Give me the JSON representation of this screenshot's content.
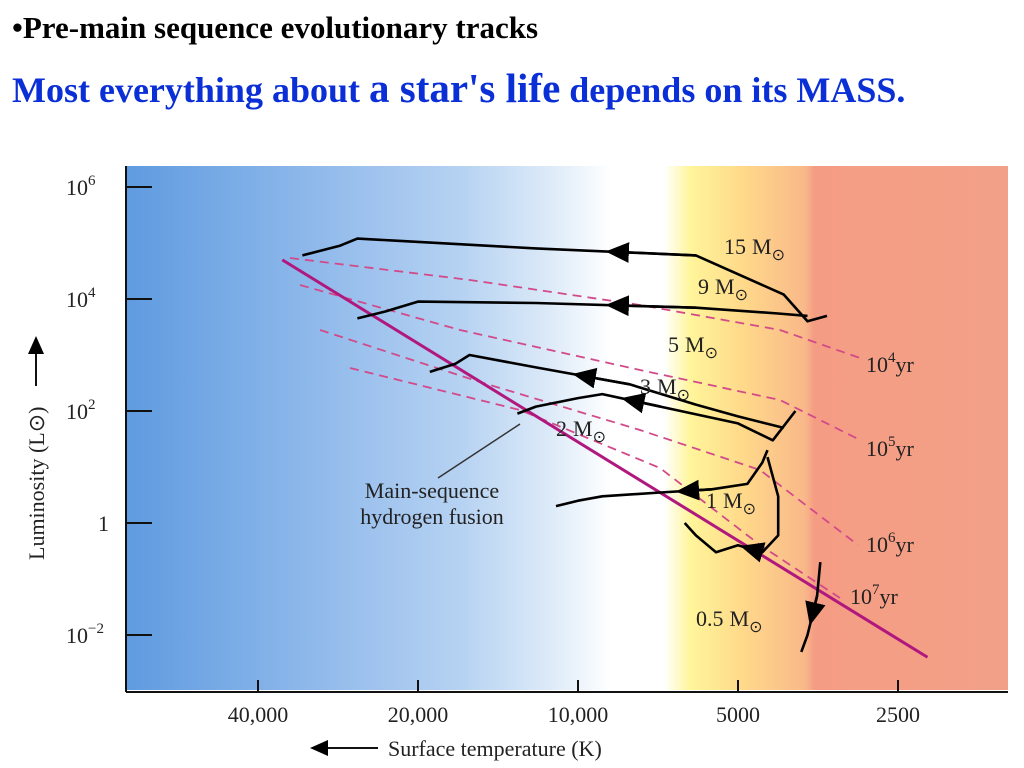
{
  "slide": {
    "bullet": "•",
    "title": "Pre-main sequence evolutionary tracks",
    "headline_part1": "Most everything about ",
    "headline_part2": "a star's life",
    "headline_part3": " depends on its MASS."
  },
  "chart_data": {
    "type": "line",
    "title": "",
    "xlabel": "Surface temperature (K)",
    "ylabel": "Luminosity (L⊙)",
    "x_scale": "log",
    "x_reversed": true,
    "y_scale": "log",
    "xlim": [
      1800,
      60000
    ],
    "ylim": [
      0.001,
      1000000
    ],
    "x_ticks": [
      {
        "value": 40000,
        "label": "40,000"
      },
      {
        "value": 20000,
        "label": "20,000"
      },
      {
        "value": 10000,
        "label": "10,000"
      },
      {
        "value": 5000,
        "label": "5000"
      },
      {
        "value": 2500,
        "label": "2500"
      }
    ],
    "y_ticks": [
      {
        "value": 1000000,
        "base": "10",
        "exp": "6"
      },
      {
        "value": 10000,
        "base": "10",
        "exp": "4"
      },
      {
        "value": 100,
        "base": "10",
        "exp": "2"
      },
      {
        "value": 1,
        "base": "1",
        "exp": ""
      },
      {
        "value": 0.01,
        "base": "10",
        "exp": "−2"
      }
    ],
    "background": "temperature-color gradient (blue hot → red cool)",
    "main_sequence": {
      "label": [
        "Main-sequence",
        "hydrogen fusion"
      ],
      "color": "#b0187e",
      "points": [
        [
          36000,
          50000
        ],
        [
          2200,
          0.004
        ]
      ]
    },
    "tracks": [
      {
        "label": "15",
        "label_unit": "M",
        "color": "#000000",
        "points": [
          [
            3400,
            5000
          ],
          [
            3700,
            4000
          ],
          [
            4100,
            12000
          ],
          [
            6000,
            60000
          ],
          [
            12000,
            80000
          ],
          [
            22000,
            110000
          ],
          [
            26000,
            120000
          ],
          [
            28000,
            90000
          ],
          [
            33000,
            60000
          ]
        ]
      },
      {
        "label": "9",
        "label_unit": "M",
        "color": "#000000",
        "points": [
          [
            3700,
            5000
          ],
          [
            4200,
            5500
          ],
          [
            6000,
            7000
          ],
          [
            12000,
            8500
          ],
          [
            20000,
            9000
          ],
          [
            23000,
            6000
          ],
          [
            26000,
            4500
          ]
        ]
      },
      {
        "label": "5",
        "label_unit": "M",
        "color": "#000000",
        "points": [
          [
            4100,
            50
          ],
          [
            5000,
            80
          ],
          [
            6000,
            130
          ],
          [
            8000,
            300
          ],
          [
            12000,
            600
          ],
          [
            16000,
            1000
          ],
          [
            17000,
            700
          ],
          [
            19000,
            500
          ]
        ]
      },
      {
        "label": "3",
        "label_unit": "M",
        "color": "#000000",
        "points": [
          [
            3900,
            100
          ],
          [
            4300,
            30
          ],
          [
            5000,
            60
          ],
          [
            7000,
            120
          ],
          [
            9000,
            200
          ],
          [
            10000,
            170
          ],
          [
            12000,
            120
          ],
          [
            13000,
            90
          ]
        ]
      },
      {
        "label": "2",
        "label_unit": "M",
        "color": "#000000",
        "points": [
          [
            4400,
            20
          ],
          [
            4500,
            12
          ],
          [
            4800,
            5
          ],
          [
            5600,
            4
          ],
          [
            7000,
            3.5
          ],
          [
            9000,
            3
          ],
          [
            10000,
            2.5
          ],
          [
            11000,
            2
          ]
        ]
      },
      {
        "label": "1",
        "label_unit": "M",
        "color": "#000000",
        "points": [
          [
            4400,
            15
          ],
          [
            4200,
            3
          ],
          [
            4200,
            0.6
          ],
          [
            4500,
            0.3
          ],
          [
            5000,
            0.4
          ],
          [
            5500,
            0.3
          ],
          [
            6000,
            0.6
          ],
          [
            6300,
            1
          ]
        ]
      },
      {
        "label": "0.5",
        "label_unit": "M",
        "color": "#000000",
        "points": [
          [
            3500,
            0.2
          ],
          [
            3550,
            0.05
          ],
          [
            3700,
            0.01
          ],
          [
            3800,
            0.005
          ]
        ]
      }
    ],
    "isochrones": [
      {
        "label": "10",
        "exp": "4",
        "unit": "yr",
        "color": "#d24a8a",
        "style": "dashed"
      },
      {
        "label": "10",
        "exp": "5",
        "unit": "yr",
        "color": "#d24a8a",
        "style": "dashed"
      },
      {
        "label": "10",
        "exp": "6",
        "unit": "yr",
        "color": "#d24a8a",
        "style": "dashed"
      },
      {
        "label": "10",
        "exp": "7",
        "unit": "yr",
        "color": "#d24a8a",
        "style": "dashed"
      }
    ],
    "sun_symbol": "⊙"
  }
}
